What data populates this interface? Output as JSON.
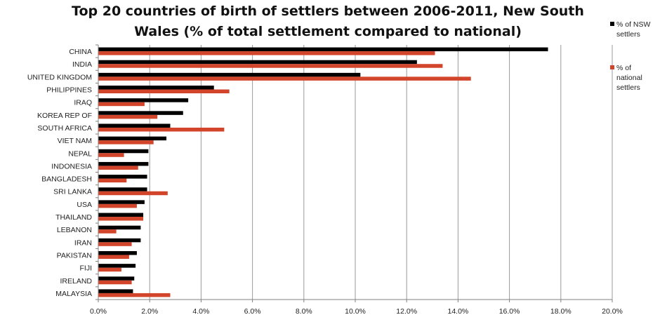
{
  "chart_data": {
    "type": "bar",
    "orientation": "horizontal",
    "title_lines": [
      "Top 20 countries of birth of settlers between 2006-2011, New South",
      "Wales (% of total settlement compared to national)"
    ],
    "categories": [
      "CHINA",
      "INDIA",
      "UNITED KINGDOM",
      "PHILIPPINES",
      "IRAQ",
      "KOREA REP OF",
      "SOUTH AFRICA",
      "VIET NAM",
      "NEPAL",
      "INDONESIA",
      "BANGLADESH",
      "SRI LANKA",
      "USA",
      "THAILAND",
      "LEBANON",
      "IRAN",
      "PAKISTAN",
      "FIJI",
      "IRELAND",
      "MALAYSIA"
    ],
    "series": [
      {
        "name": "% of NSW settlers",
        "legend_lines": [
          "% of NSW",
          "settlers"
        ],
        "color": "#000000",
        "values": [
          17.5,
          12.4,
          10.2,
          4.5,
          3.5,
          3.3,
          2.8,
          2.65,
          1.95,
          1.95,
          1.9,
          1.9,
          1.8,
          1.75,
          1.65,
          1.65,
          1.5,
          1.45,
          1.4,
          1.35
        ]
      },
      {
        "name": "% of national settlers",
        "legend_lines": [
          "% of",
          "national",
          "settlers"
        ],
        "color": "#d2452b",
        "values": [
          13.1,
          13.4,
          14.5,
          5.1,
          1.8,
          2.3,
          4.9,
          2.15,
          1.0,
          1.55,
          1.1,
          2.7,
          1.5,
          1.75,
          0.7,
          1.3,
          1.2,
          0.9,
          1.3,
          2.8
        ]
      }
    ],
    "x_ticks": [
      "0.0%",
      "2.0%",
      "4.0%",
      "6.0%",
      "8.0%",
      "10.0%",
      "12.0%",
      "14.0%",
      "16.0%",
      "18.0%",
      "20.0%"
    ],
    "xlim": [
      0,
      20
    ],
    "grid": "vertical",
    "legend": "right"
  }
}
